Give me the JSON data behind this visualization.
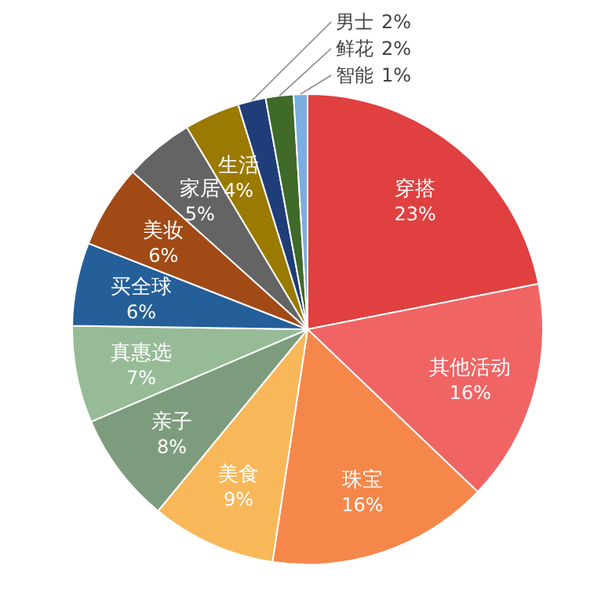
{
  "chart_data": {
    "type": "pie",
    "categories": [
      "穿搭",
      "其他活动",
      "珠宝",
      "美食",
      "亲子",
      "真惠选",
      "买全球",
      "美妆",
      "家居",
      "生活",
      "男士",
      "鲜花",
      "智能"
    ],
    "values": [
      23,
      16,
      16,
      9,
      8,
      7,
      6,
      6,
      5,
      4,
      2,
      2,
      1
    ],
    "value_labels": [
      "23%",
      "16%",
      "16%",
      "9%",
      "8%",
      "7%",
      "6%",
      "6%",
      "5%",
      "4%",
      "2%",
      "2%",
      "1%"
    ],
    "colors": [
      "#e04040",
      "#f06464",
      "#f5874a",
      "#f8b85a",
      "#7d9c7e",
      "#97bb97",
      "#255f99",
      "#a14a16",
      "#646464",
      "#9a7a00",
      "#1f3d78",
      "#3f6a2a",
      "#7aaee0"
    ]
  }
}
